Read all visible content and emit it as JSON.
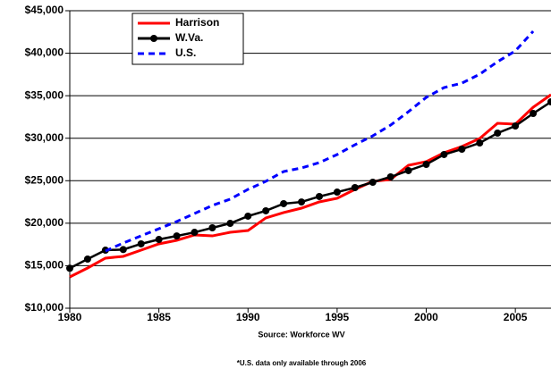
{
  "chart_data": {
    "type": "line",
    "x": [
      1980,
      1981,
      1982,
      1983,
      1984,
      1985,
      1986,
      1987,
      1988,
      1989,
      1990,
      1991,
      1992,
      1993,
      1994,
      1995,
      1996,
      1997,
      1998,
      1999,
      2000,
      2001,
      2002,
      2003,
      2004,
      2005,
      2006,
      2007
    ],
    "series": [
      {
        "name": "Harrison",
        "color": "#ff0000",
        "values": [
          13680,
          14730,
          15890,
          16100,
          16830,
          17570,
          17990,
          18620,
          18510,
          18930,
          19140,
          20620,
          21250,
          21770,
          22510,
          22930,
          23980,
          24930,
          25140,
          26820,
          27240,
          28290,
          29020,
          29970,
          31760,
          31650,
          33640,
          35120
        ]
      },
      {
        "name": "W.Va.",
        "color": "#000000",
        "values": [
          14700,
          15780,
          16830,
          16900,
          17570,
          18090,
          18500,
          18930,
          19460,
          19980,
          20830,
          21460,
          22300,
          22500,
          23140,
          23660,
          24190,
          24820,
          25450,
          26190,
          26920,
          28080,
          28710,
          29440,
          30600,
          31440,
          32910,
          34280
        ]
      },
      {
        "name": "U.S.",
        "color": "#0000ff",
        "values": [
          null,
          null,
          16730,
          17670,
          18510,
          19350,
          20200,
          21140,
          22090,
          22830,
          23980,
          24930,
          26080,
          26500,
          27130,
          28080,
          29230,
          30280,
          31540,
          33120,
          34800,
          35960,
          36480,
          37530,
          39000,
          40270,
          42580,
          null
        ]
      }
    ],
    "xlim": [
      1980,
      2007
    ],
    "xticks": [
      1980,
      1985,
      1990,
      1995,
      2000,
      2005
    ],
    "ylim": [
      10000,
      45000
    ],
    "yticks": [
      {
        "value": 10000,
        "label": "$10,000"
      },
      {
        "value": 15000,
        "label": "$15,000"
      },
      {
        "value": 20000,
        "label": "$20,000"
      },
      {
        "value": 25000,
        "label": "$25,000"
      },
      {
        "value": 30000,
        "label": "$30,000"
      },
      {
        "value": 35000,
        "label": "$35,000"
      },
      {
        "value": 40000,
        "label": "$40,000"
      },
      {
        "value": 45000,
        "label": "$45,000"
      }
    ],
    "grid": true,
    "legend": "upper left",
    "annotations": [
      "Source: Workforce WV",
      "*U.S. data only available through 2006"
    ]
  }
}
